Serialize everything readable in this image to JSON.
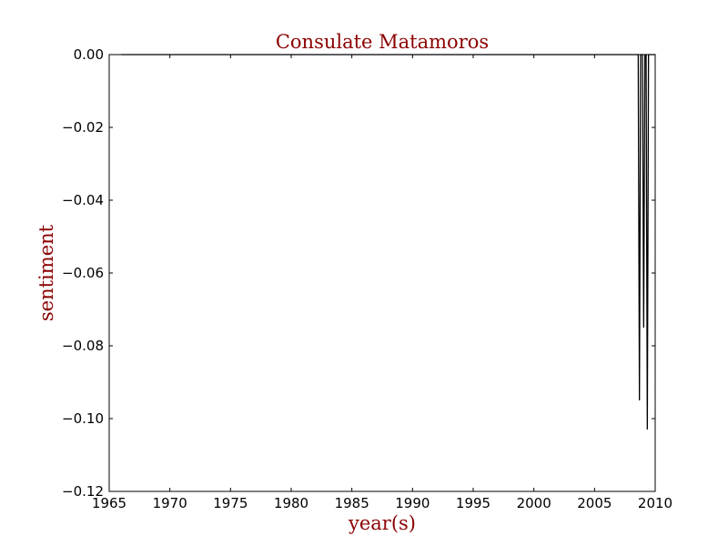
{
  "chart_data": {
    "type": "line",
    "title": "Consulate Matamoros",
    "xlabel": "year(s)",
    "ylabel": "sentiment",
    "xlim": [
      1965,
      2010
    ],
    "ylim": [
      -0.12,
      0.0
    ],
    "xticks": [
      1965,
      1970,
      1975,
      1980,
      1985,
      1990,
      1995,
      2000,
      2005,
      2010
    ],
    "xtick_labels": [
      "1965",
      "1970",
      "1975",
      "1980",
      "1985",
      "1990",
      "1995",
      "2000",
      "2005",
      "2010"
    ],
    "yticks": [
      0.0,
      -0.02,
      -0.04,
      -0.06,
      -0.08,
      -0.1,
      -0.12
    ],
    "ytick_labels": [
      "0.00",
      "−0.02",
      "−0.04",
      "−0.06",
      "−0.08",
      "−0.10",
      "−0.12"
    ],
    "grid": false,
    "series": [
      {
        "color": "#000000",
        "points": [
          [
            1966.0,
            0.0
          ],
          [
            2008.6,
            0.0
          ],
          [
            2008.7,
            -0.095
          ],
          [
            2008.8,
            0.0
          ],
          [
            2008.95,
            0.0
          ],
          [
            2009.05,
            -0.075
          ],
          [
            2009.15,
            0.0
          ],
          [
            2009.25,
            0.0
          ],
          [
            2009.35,
            -0.103
          ],
          [
            2009.45,
            0.0
          ],
          [
            2010.0,
            0.0
          ]
        ]
      }
    ],
    "title_color": "#8b0000",
    "label_color": "#8b0000"
  }
}
